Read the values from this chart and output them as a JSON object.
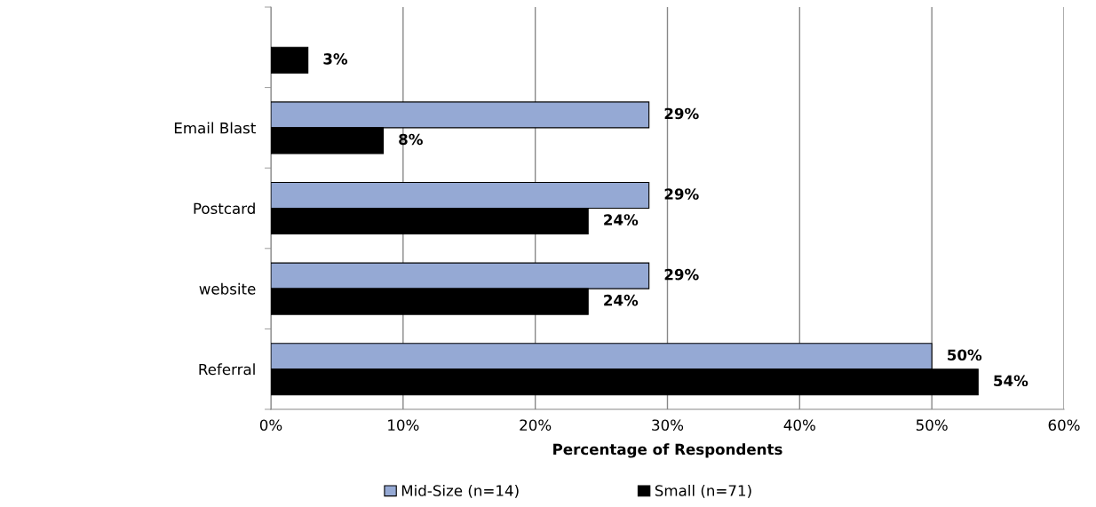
{
  "chart_data": {
    "type": "bar",
    "orientation": "horizontal",
    "categories": [
      null,
      "Email Blast",
      "Postcard",
      "website",
      "Referral"
    ],
    "series": [
      {
        "name": "Mid-Size (n=14)",
        "color": "#95a9d4",
        "values": [
          null,
          28.6,
          28.6,
          28.6,
          50
        ],
        "value_labels": [
          null,
          "29%",
          "29%",
          "29%",
          "50%"
        ]
      },
      {
        "name": "Small (n=71)",
        "color": "#000000",
        "values": [
          2.8,
          8.5,
          24,
          24,
          53.5
        ],
        "value_labels": [
          "3%",
          "8%",
          "24%",
          "24%",
          "54%"
        ]
      }
    ],
    "xlabel": "Percentage of Respondents",
    "xlim": [
      0,
      60
    ],
    "xticks": [
      {
        "value": 0,
        "label": "0%"
      },
      {
        "value": 10,
        "label": "10%"
      },
      {
        "value": 20,
        "label": "20%"
      },
      {
        "value": 30,
        "label": "30%"
      },
      {
        "value": 40,
        "label": "40%"
      },
      {
        "value": 50,
        "label": "50%"
      },
      {
        "value": 60,
        "label": "60%"
      }
    ],
    "grid": "x",
    "legend": "bottom"
  }
}
